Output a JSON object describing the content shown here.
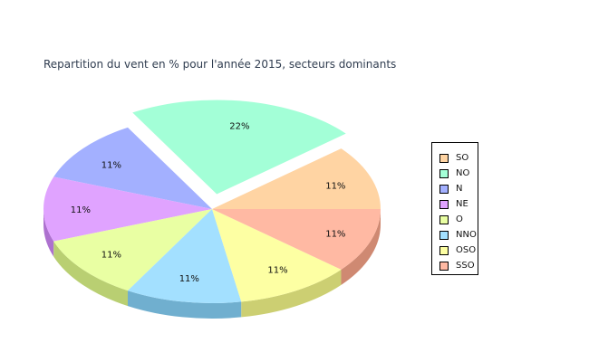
{
  "chart_data": {
    "type": "pie",
    "variant": "3d",
    "title": "Repartition du vent en % pour l'année 2015, secteurs dominants",
    "legend_position": "right",
    "slices": [
      {
        "name": "SO",
        "value": 11,
        "label": "11%",
        "color": "#ffd4a3",
        "side": "#cfa777",
        "exploded": false
      },
      {
        "name": "NO",
        "value": 22,
        "label": "22%",
        "color": "#a3ffd7",
        "side": "#6ccfa5",
        "exploded": true
      },
      {
        "name": "N",
        "value": 11,
        "label": "11%",
        "color": "#a3b0ff",
        "side": "#7280cf",
        "exploded": false
      },
      {
        "name": "NE",
        "value": 11,
        "label": "11%",
        "color": "#e0a3ff",
        "side": "#ad71cf",
        "exploded": false
      },
      {
        "name": "O",
        "value": 11,
        "label": "11%",
        "color": "#e9ffa3",
        "side": "#b9cf72",
        "exploded": false
      },
      {
        "name": "NNO",
        "value": 11,
        "label": "11%",
        "color": "#a3e0ff",
        "side": "#70afcf",
        "exploded": false
      },
      {
        "name": "OSO",
        "value": 11,
        "label": "11%",
        "color": "#fdffa3",
        "side": "#cccf72",
        "exploded": false
      },
      {
        "name": "SSO",
        "value": 11,
        "label": "11%",
        "color": "#ffb9a3",
        "side": "#cf8972",
        "exploded": false
      }
    ]
  }
}
